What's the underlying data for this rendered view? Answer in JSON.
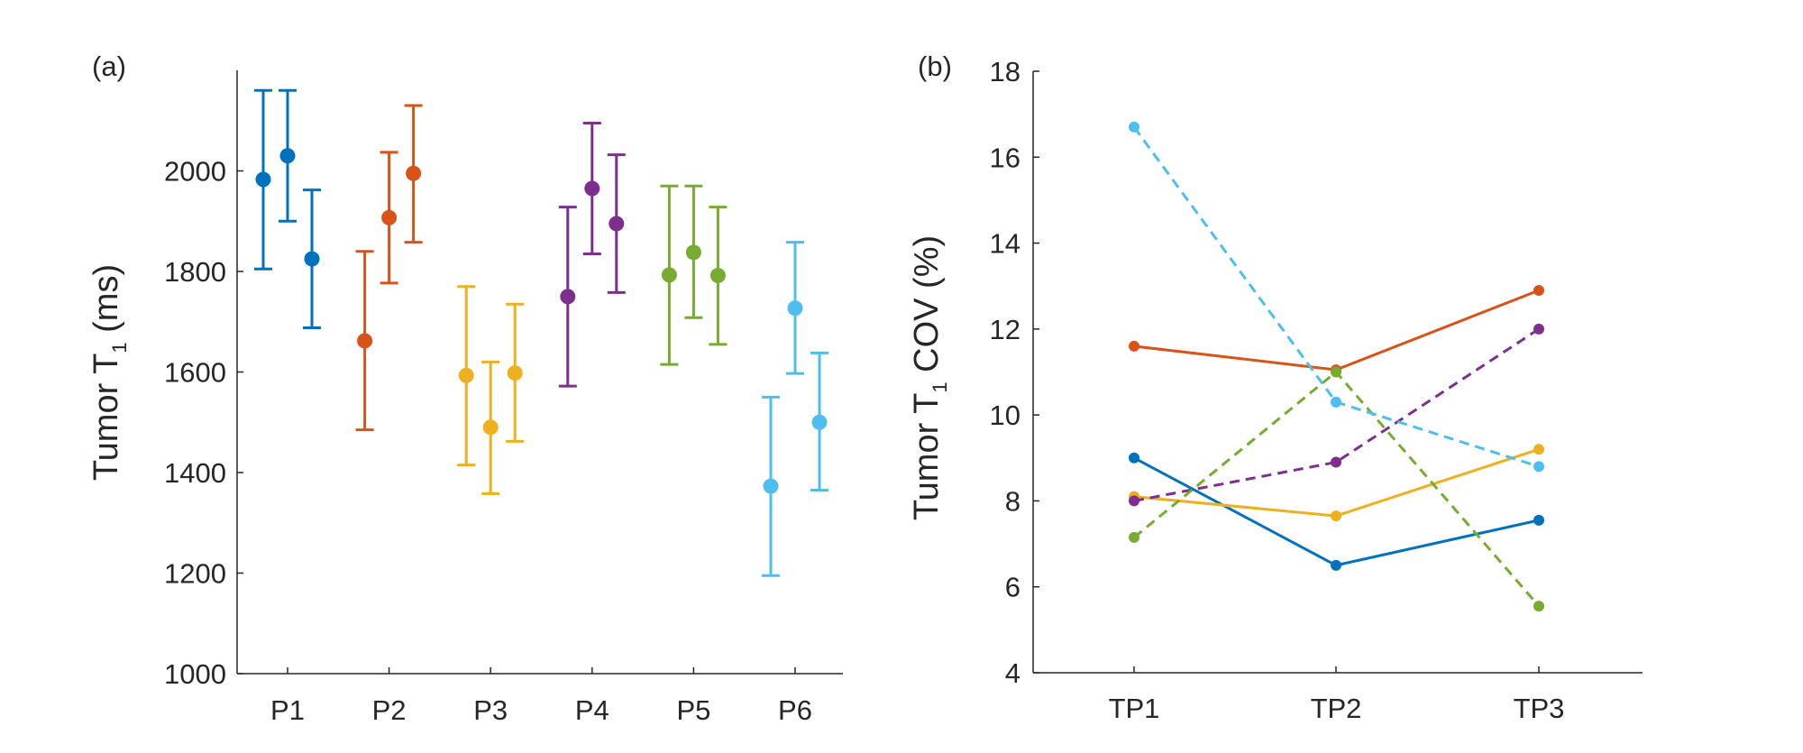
{
  "chart_data": [
    {
      "type": "scatter",
      "panel_label": "(a)",
      "ylabel_main": "Tumor T",
      "ylabel_sub": "1",
      "ylabel_units": " (ms)",
      "ylim": [
        1000,
        2200
      ],
      "yticks": [
        1000,
        1200,
        1400,
        1600,
        1800,
        2000
      ],
      "categories": [
        "P1",
        "P2",
        "P3",
        "P4",
        "P5",
        "P6"
      ],
      "series": [
        {
          "name": "P1",
          "color": "#0072BD",
          "points": [
            {
              "mean": 1983,
              "low": 1805,
              "high": 2160
            },
            {
              "mean": 2030,
              "low": 1900,
              "high": 2160
            },
            {
              "mean": 1825,
              "low": 1688,
              "high": 1962
            }
          ]
        },
        {
          "name": "P2",
          "color": "#D95319",
          "points": [
            {
              "mean": 1662,
              "low": 1485,
              "high": 1840
            },
            {
              "mean": 1907,
              "low": 1777,
              "high": 2037
            },
            {
              "mean": 1995,
              "low": 1858,
              "high": 2130
            }
          ]
        },
        {
          "name": "P3",
          "color": "#EDB120",
          "points": [
            {
              "mean": 1593,
              "low": 1415,
              "high": 1770
            },
            {
              "mean": 1490,
              "low": 1358,
              "high": 1620
            },
            {
              "mean": 1598,
              "low": 1462,
              "high": 1735
            }
          ]
        },
        {
          "name": "P4",
          "color": "#7E2F8E",
          "points": [
            {
              "mean": 1750,
              "low": 1572,
              "high": 1928
            },
            {
              "mean": 1965,
              "low": 1835,
              "high": 2095
            },
            {
              "mean": 1895,
              "low": 1758,
              "high": 2032
            }
          ]
        },
        {
          "name": "P5",
          "color": "#77AC30",
          "points": [
            {
              "mean": 1793,
              "low": 1615,
              "high": 1970
            },
            {
              "mean": 1838,
              "low": 1708,
              "high": 1970
            },
            {
              "mean": 1792,
              "low": 1655,
              "high": 1928
            }
          ]
        },
        {
          "name": "P6",
          "color": "#4DBEEE",
          "points": [
            {
              "mean": 1373,
              "low": 1195,
              "high": 1550
            },
            {
              "mean": 1727,
              "low": 1597,
              "high": 1858
            },
            {
              "mean": 1500,
              "low": 1365,
              "high": 1638
            }
          ]
        }
      ]
    },
    {
      "type": "line",
      "panel_label": "(b)",
      "ylabel_main": "Tumor T",
      "ylabel_sub": "1",
      "ylabel_units": " COV (%)",
      "ylim": [
        4,
        18
      ],
      "yticks": [
        4,
        6,
        8,
        10,
        12,
        14,
        16,
        18
      ],
      "categories": [
        "TP1",
        "TP2",
        "TP3"
      ],
      "series": [
        {
          "name": "P1",
          "color": "#0072BD",
          "style": "solid",
          "values": [
            9.0,
            6.5,
            7.55
          ]
        },
        {
          "name": "P2",
          "color": "#D95319",
          "style": "solid",
          "values": [
            11.6,
            11.05,
            12.9
          ]
        },
        {
          "name": "P3",
          "color": "#EDB120",
          "style": "solid",
          "values": [
            8.1,
            7.65,
            9.2
          ]
        },
        {
          "name": "P4",
          "color": "#7E2F8E",
          "style": "dashed",
          "values": [
            8.0,
            8.9,
            12.0
          ]
        },
        {
          "name": "P5",
          "color": "#77AC30",
          "style": "dashed",
          "values": [
            7.15,
            11.0,
            5.55
          ]
        },
        {
          "name": "P6",
          "color": "#4DBEEE",
          "style": "dashed",
          "values": [
            16.7,
            10.3,
            8.8
          ]
        }
      ]
    }
  ]
}
